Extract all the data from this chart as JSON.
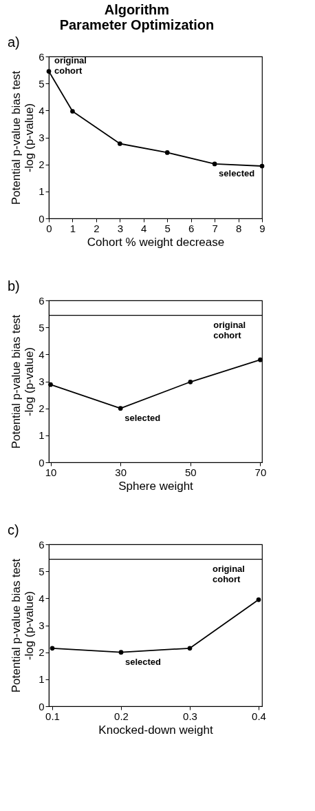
{
  "chart_data": [
    {
      "type": "line",
      "title": "Algorithm\nParameter Optimization",
      "xlabel": "Cohort % weight decrease",
      "ylabel": "Potential p-value bias test\n-log (p-value)",
      "x": [
        0,
        1,
        3,
        5,
        7,
        9
      ],
      "series": [
        {
          "color": "#000000",
          "values": [
            5.45,
            3.97,
            2.77,
            2.44,
            2.02,
            1.94
          ]
        }
      ],
      "xlim": [
        0,
        9
      ],
      "xticks": [
        0,
        1,
        2,
        3,
        4,
        5,
        6,
        7,
        8,
        9
      ],
      "ylim": [
        0,
        6
      ],
      "yticks": [
        0,
        1,
        2,
        3,
        4,
        5,
        6
      ],
      "marker": "circle",
      "line_style": "solid",
      "annotations": [
        "a)",
        {
          "text": "original cohort",
          "x": 0,
          "y": 5.45
        },
        {
          "text": "selected",
          "x": 7,
          "y": 2.02
        }
      ]
    },
    {
      "type": "line",
      "xlabel": "Sphere weight",
      "ylabel": "Potential p-value bias test\n-log (p-value)",
      "x": [
        10,
        30,
        50,
        70
      ],
      "series": [
        {
          "color": "#000000",
          "values": [
            2.88,
            2.0,
            2.98,
            3.8
          ]
        }
      ],
      "xlim": [
        9.5,
        70.5
      ],
      "xticks": [
        10,
        30,
        50,
        70
      ],
      "ylim": [
        0,
        6
      ],
      "yticks": [
        0,
        1,
        2,
        3,
        4,
        5,
        6
      ],
      "marker": "circle",
      "line_style": "solid",
      "ref_lines": [
        {
          "axis": "y",
          "value": 5.45,
          "color": "#000000"
        }
      ],
      "annotations": [
        "b)",
        {
          "text": "original cohort",
          "x": 55,
          "y": 5.45
        },
        {
          "text": "selected",
          "x": 30,
          "y": 2.0
        }
      ]
    },
    {
      "type": "line",
      "xlabel": "Knocked-down weight",
      "ylabel": "Potential p-value bias test\n-log (p-value)",
      "x": [
        0.1,
        0.2,
        0.3,
        0.4
      ],
      "series": [
        {
          "color": "#000000",
          "values": [
            2.15,
            2.0,
            2.15,
            3.95
          ]
        }
      ],
      "xlim": [
        0.095,
        0.405
      ],
      "xticks": [
        0.1,
        0.2,
        0.3,
        0.4
      ],
      "ylim": [
        0,
        6
      ],
      "yticks": [
        0,
        1,
        2,
        3,
        4,
        5,
        6
      ],
      "marker": "circle",
      "line_style": "solid",
      "ref_lines": [
        {
          "axis": "y",
          "value": 5.45,
          "color": "#000000"
        }
      ],
      "annotations": [
        "c)",
        {
          "text": "original cohort",
          "x": 0.325,
          "y": 5.45
        },
        {
          "text": "selected",
          "x": 0.2,
          "y": 2.0
        }
      ]
    }
  ]
}
